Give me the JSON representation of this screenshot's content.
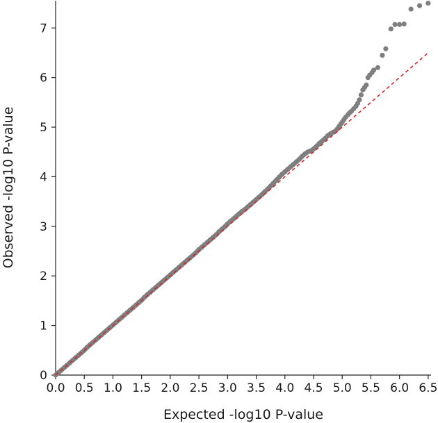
{
  "chart_data": {
    "type": "scatter",
    "xlabel": "Expected -log10 P-value",
    "ylabel": "Observed -log10 P-value",
    "xlim": [
      0,
      6.55
    ],
    "ylim": [
      0,
      7.55
    ],
    "x_ticks": [
      0.0,
      0.5,
      1.0,
      1.5,
      2.0,
      2.5,
      3.0,
      3.5,
      4.0,
      4.5,
      5.0,
      5.5,
      6.0,
      6.5
    ],
    "x_tick_labels": [
      "0.0",
      "0.5",
      "1.0",
      "1.5",
      "2.0",
      "2.5",
      "3.0",
      "3.5",
      "4.0",
      "4.5",
      "5.0",
      "5.5",
      "6.0",
      "6.5"
    ],
    "y_ticks": [
      0,
      1,
      2,
      3,
      4,
      5,
      6,
      7
    ],
    "y_tick_labels": [
      "0",
      "1",
      "2",
      "3",
      "4",
      "5",
      "6",
      "7"
    ],
    "point_color": "#7f7f7f",
    "reference_line": {
      "style": "dashed",
      "color": "#d62728",
      "x": [
        0,
        6.5
      ],
      "y": [
        0,
        6.5
      ]
    },
    "series": [
      {
        "points": [
          [
            0.0,
            0.0
          ],
          [
            0.05,
            0.05
          ],
          [
            0.1,
            0.1
          ],
          [
            0.15,
            0.15
          ],
          [
            0.2,
            0.2
          ],
          [
            0.25,
            0.25
          ],
          [
            0.3,
            0.3
          ],
          [
            0.35,
            0.35
          ],
          [
            0.4,
            0.4
          ],
          [
            0.45,
            0.45
          ],
          [
            0.5,
            0.5
          ],
          [
            0.55,
            0.56
          ],
          [
            0.6,
            0.61
          ],
          [
            0.65,
            0.66
          ],
          [
            0.7,
            0.71
          ],
          [
            0.75,
            0.76
          ],
          [
            0.8,
            0.81
          ],
          [
            0.85,
            0.86
          ],
          [
            0.9,
            0.91
          ],
          [
            0.95,
            0.96
          ],
          [
            1.0,
            1.01
          ],
          [
            1.05,
            1.06
          ],
          [
            1.1,
            1.11
          ],
          [
            1.15,
            1.16
          ],
          [
            1.2,
            1.21
          ],
          [
            1.25,
            1.26
          ],
          [
            1.3,
            1.31
          ],
          [
            1.35,
            1.36
          ],
          [
            1.4,
            1.41
          ],
          [
            1.45,
            1.46
          ],
          [
            1.5,
            1.51
          ],
          [
            1.55,
            1.57
          ],
          [
            1.6,
            1.62
          ],
          [
            1.65,
            1.67
          ],
          [
            1.7,
            1.72
          ],
          [
            1.75,
            1.77
          ],
          [
            1.8,
            1.82
          ],
          [
            1.85,
            1.87
          ],
          [
            1.9,
            1.92
          ],
          [
            1.95,
            1.97
          ],
          [
            2.0,
            2.02
          ],
          [
            2.05,
            2.07
          ],
          [
            2.1,
            2.12
          ],
          [
            2.15,
            2.17
          ],
          [
            2.2,
            2.22
          ],
          [
            2.25,
            2.27
          ],
          [
            2.3,
            2.32
          ],
          [
            2.35,
            2.37
          ],
          [
            2.4,
            2.42
          ],
          [
            2.45,
            2.47
          ],
          [
            2.5,
            2.53
          ],
          [
            2.55,
            2.58
          ],
          [
            2.6,
            2.63
          ],
          [
            2.65,
            2.68
          ],
          [
            2.7,
            2.73
          ],
          [
            2.75,
            2.78
          ],
          [
            2.8,
            2.83
          ],
          [
            2.85,
            2.89
          ],
          [
            2.9,
            2.94
          ],
          [
            2.95,
            2.99
          ],
          [
            3.0,
            3.05
          ],
          [
            3.05,
            3.1
          ],
          [
            3.1,
            3.15
          ],
          [
            3.15,
            3.2
          ],
          [
            3.2,
            3.25
          ],
          [
            3.25,
            3.3
          ],
          [
            3.3,
            3.34
          ],
          [
            3.35,
            3.39
          ],
          [
            3.4,
            3.44
          ],
          [
            3.45,
            3.49
          ],
          [
            3.5,
            3.54
          ],
          [
            3.55,
            3.59
          ],
          [
            3.6,
            3.64
          ],
          [
            3.65,
            3.7
          ],
          [
            3.7,
            3.75
          ],
          [
            3.75,
            3.81
          ],
          [
            3.8,
            3.87
          ],
          [
            3.85,
            3.93
          ],
          [
            3.9,
            3.99
          ],
          [
            3.95,
            4.05
          ],
          [
            4.0,
            4.1
          ],
          [
            4.05,
            4.15
          ],
          [
            4.1,
            4.2
          ],
          [
            4.15,
            4.25
          ],
          [
            4.2,
            4.3
          ],
          [
            4.25,
            4.35
          ],
          [
            4.3,
            4.41
          ],
          [
            4.35,
            4.46
          ],
          [
            4.4,
            4.5
          ],
          [
            4.45,
            4.52
          ],
          [
            4.5,
            4.56
          ],
          [
            4.55,
            4.61
          ],
          [
            4.6,
            4.67
          ],
          [
            4.65,
            4.72
          ],
          [
            4.7,
            4.77
          ],
          [
            4.75,
            4.83
          ],
          [
            4.8,
            4.87
          ],
          [
            4.85,
            4.9
          ],
          [
            4.88,
            4.92
          ],
          [
            4.92,
            4.97
          ],
          [
            4.95,
            5.02
          ],
          [
            4.98,
            5.07
          ],
          [
            5.0,
            5.1
          ],
          [
            5.03,
            5.15
          ],
          [
            5.06,
            5.2
          ],
          [
            5.1,
            5.25
          ],
          [
            5.13,
            5.29
          ],
          [
            5.16,
            5.32
          ],
          [
            5.2,
            5.37
          ],
          [
            5.24,
            5.42
          ],
          [
            5.27,
            5.48
          ],
          [
            5.3,
            5.55
          ],
          [
            5.33,
            5.65
          ],
          [
            5.36,
            5.75
          ],
          [
            5.39,
            5.8
          ],
          [
            5.42,
            5.85
          ],
          [
            5.45,
            6.0
          ],
          [
            5.48,
            6.05
          ],
          [
            5.52,
            6.1
          ],
          [
            5.55,
            6.15
          ],
          [
            5.62,
            6.2
          ],
          [
            5.7,
            6.45
          ],
          [
            5.76,
            6.58
          ],
          [
            5.85,
            6.98
          ],
          [
            5.92,
            7.07
          ],
          [
            6.0,
            7.07
          ],
          [
            6.08,
            7.08
          ],
          [
            6.2,
            7.38
          ],
          [
            6.35,
            7.45
          ],
          [
            6.5,
            7.5
          ]
        ]
      }
    ]
  }
}
